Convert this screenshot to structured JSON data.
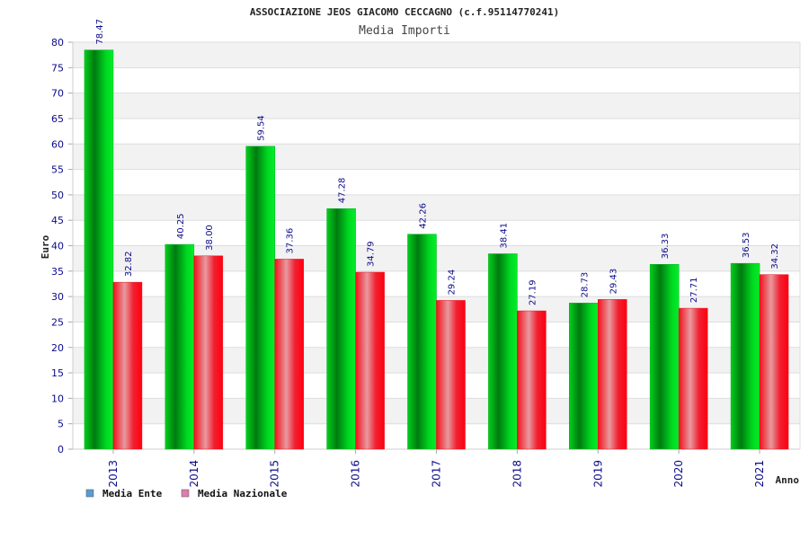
{
  "chart_data": {
    "type": "bar",
    "title": "ASSOCIAZIONE JEOS GIACOMO CECCAGNO (c.f.95114770241)",
    "subtitle": "Media Importi",
    "xlabel": "Anno",
    "ylabel": "Euro",
    "ylim": [
      0,
      80
    ],
    "ytick_step": 5,
    "categories": [
      "2013",
      "2014",
      "2015",
      "2016",
      "2017",
      "2018",
      "2019",
      "2020",
      "2021"
    ],
    "series": [
      {
        "name": "Media Ente",
        "values": [
          78.47,
          40.25,
          59.54,
          47.28,
          42.26,
          38.41,
          28.73,
          36.33,
          36.53
        ],
        "color": "#00c020",
        "legend_color": "#5b9bd5"
      },
      {
        "name": "Media Nazionale",
        "values": [
          32.82,
          38.0,
          37.36,
          34.79,
          29.24,
          27.19,
          29.43,
          27.71,
          34.32
        ],
        "color": "#e8101a",
        "legend_color": "#e07bb0"
      }
    ],
    "value_labels": [
      [
        "78.47",
        "40.25",
        "59.54",
        "47.28",
        "42.26",
        "38.41",
        "28.73",
        "36.33",
        "36.53"
      ],
      [
        "32.82",
        "38.00",
        "37.36",
        "34.79",
        "29.24",
        "27.19",
        "29.43",
        "27.71",
        "34.32"
      ]
    ],
    "grid": true,
    "legend_position": "bottom-left"
  }
}
